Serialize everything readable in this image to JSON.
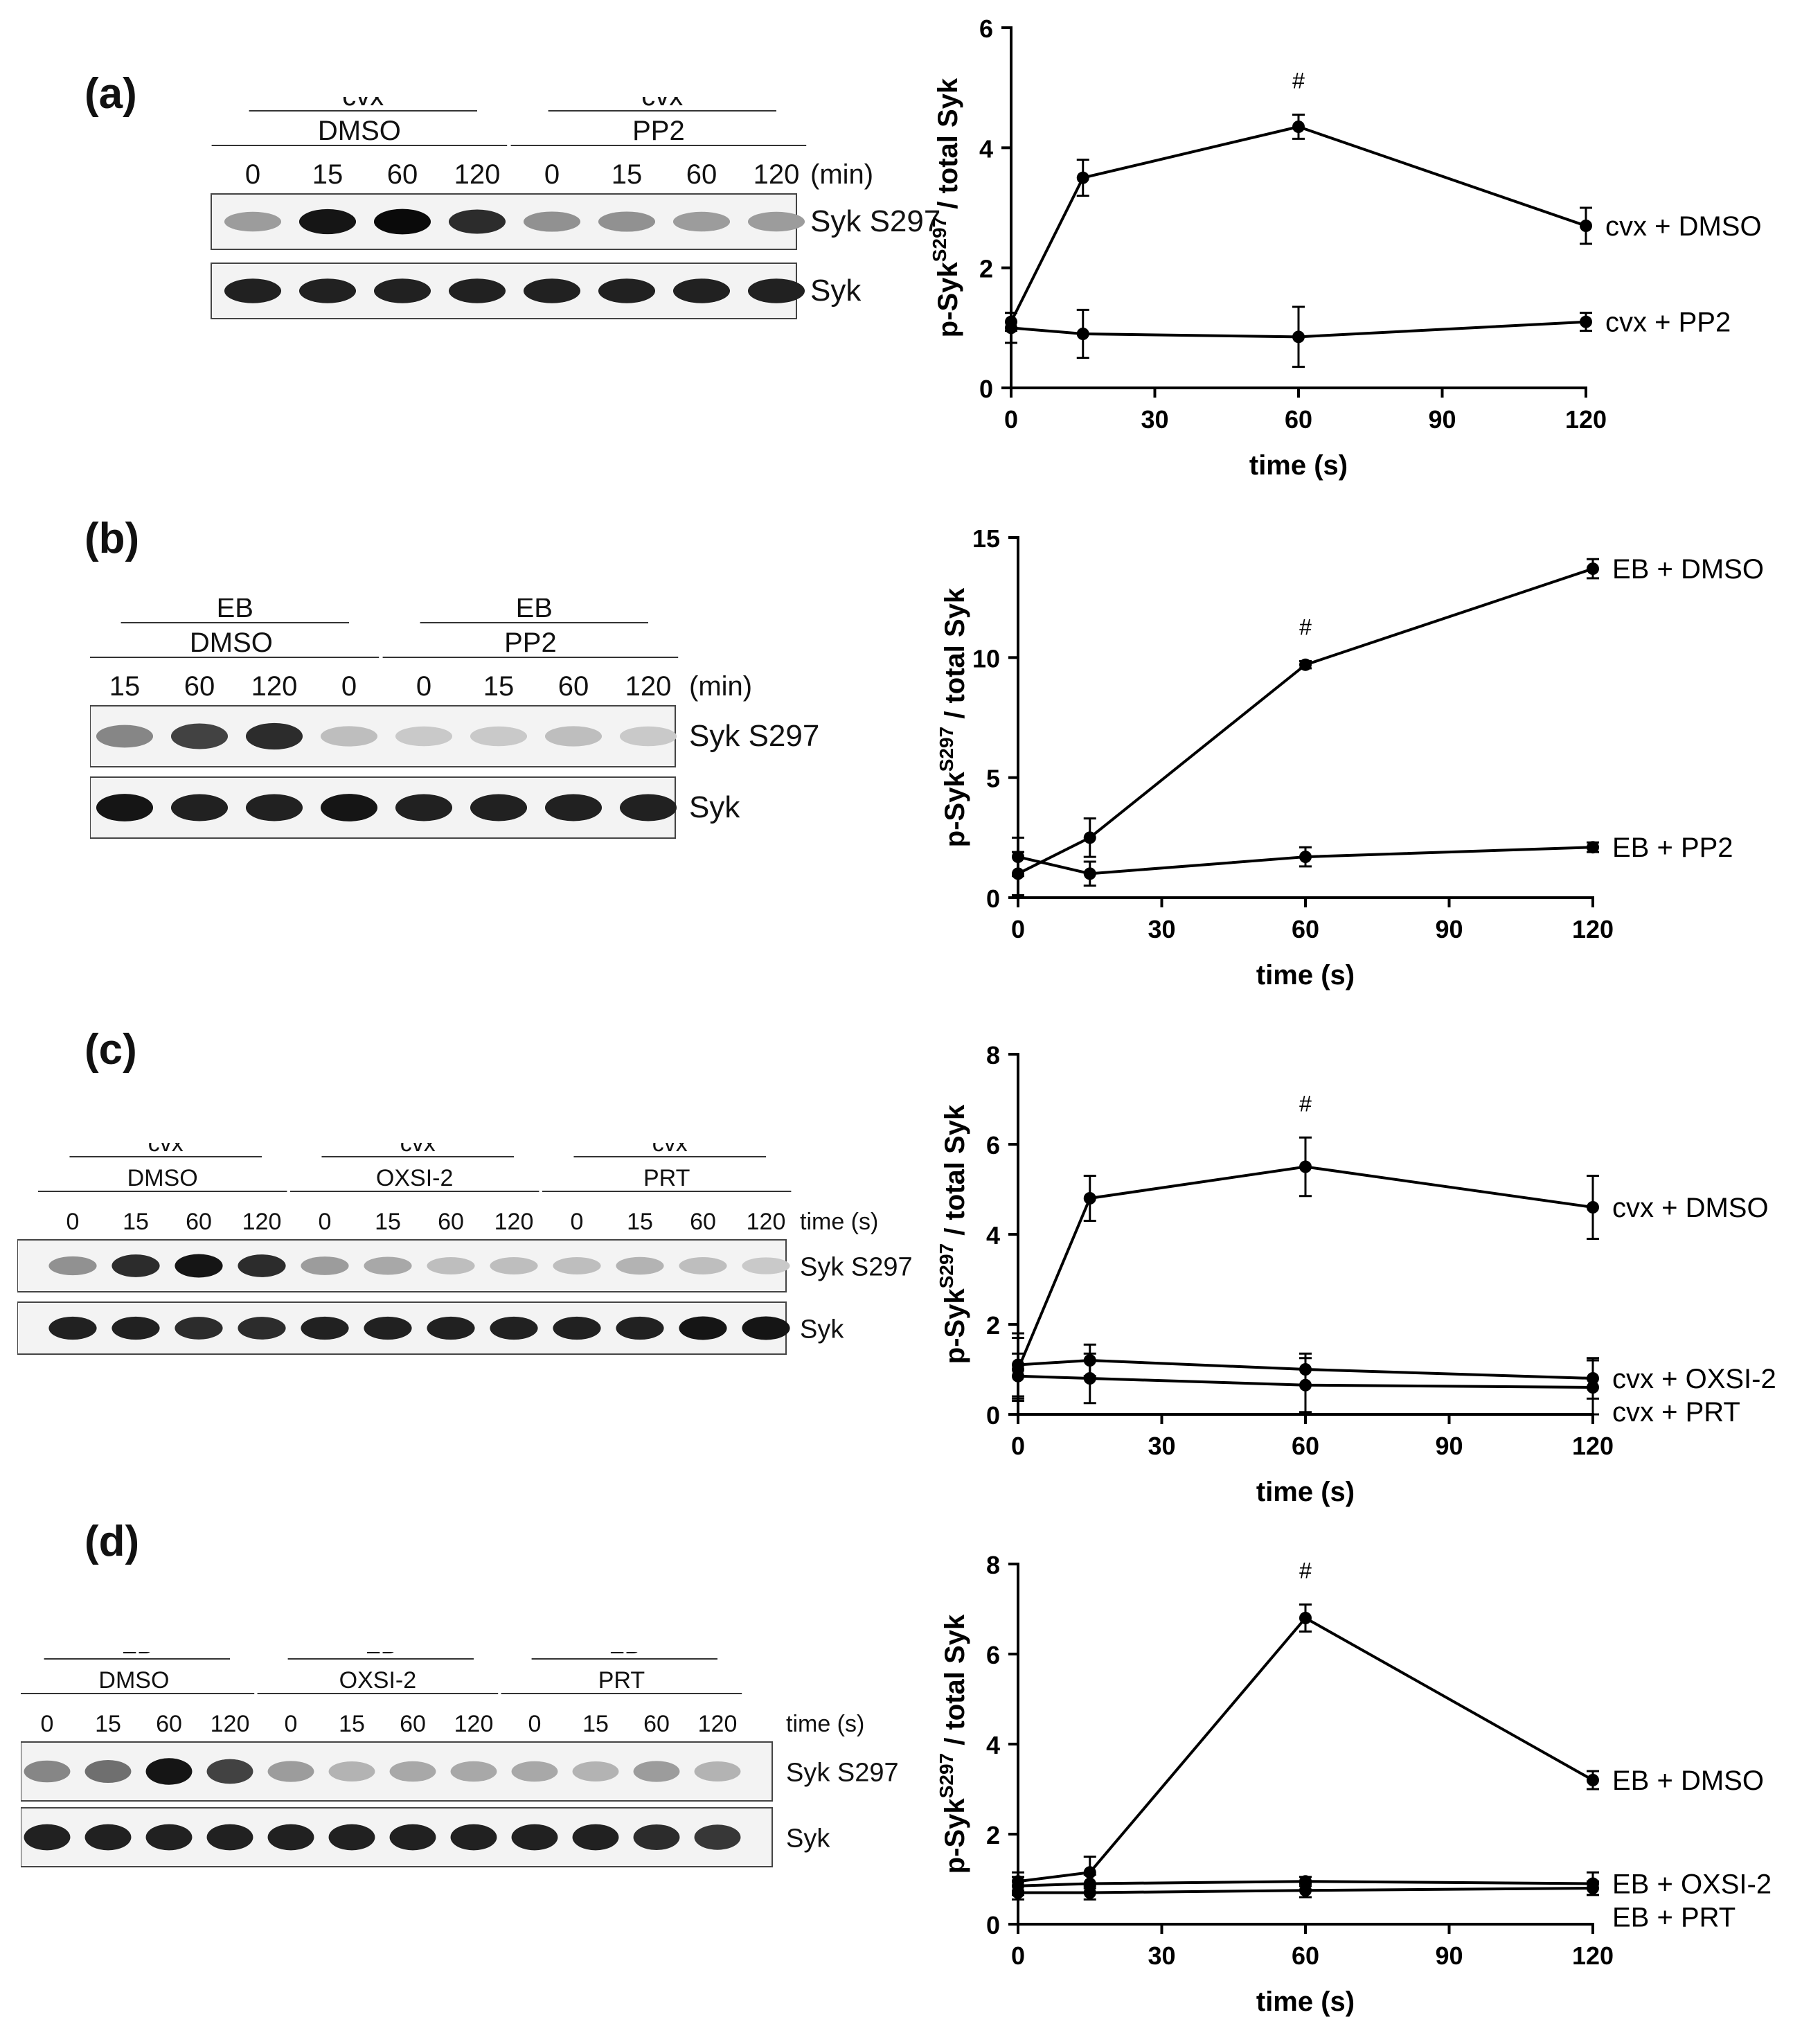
{
  "panels": [
    {
      "label": "(a)",
      "blot": {
        "groups": [
          {
            "treatment": "DMSO",
            "stimulus": "cvx"
          },
          {
            "treatment": "PP2",
            "stimulus": "cvx"
          }
        ],
        "times": [
          "0",
          "15",
          "60",
          "120",
          "0",
          "15",
          "60",
          "120"
        ],
        "time_unit": "(min)",
        "rows": [
          "Syk S297",
          "Syk"
        ],
        "phospho_intensity": [
          0.35,
          0.95,
          1.0,
          0.85,
          0.4,
          0.4,
          0.35,
          0.35
        ],
        "total_intensity": [
          0.9,
          0.9,
          0.9,
          0.9,
          0.9,
          0.9,
          0.9,
          0.9
        ]
      }
    },
    {
      "label": "(b)",
      "blot": {
        "groups": [
          {
            "treatment": "DMSO",
            "stimulus": "EB"
          },
          {
            "treatment": "PP2",
            "stimulus": "EB"
          }
        ],
        "times": [
          "15",
          "60",
          "120",
          "0",
          "0",
          "15",
          "60",
          "120"
        ],
        "time_unit": "(min)",
        "rows": [
          "Syk S297",
          "Syk"
        ],
        "phospho_intensity": [
          0.45,
          0.75,
          0.85,
          0.2,
          0.15,
          0.15,
          0.2,
          0.15
        ],
        "total_intensity": [
          0.95,
          0.9,
          0.9,
          0.95,
          0.9,
          0.9,
          0.9,
          0.9
        ]
      }
    },
    {
      "label": "(c)",
      "blot": {
        "groups": [
          {
            "treatment": "DMSO",
            "stimulus": "cvx"
          },
          {
            "treatment": "OXSI-2",
            "stimulus": "cvx"
          },
          {
            "treatment": "PRT",
            "stimulus": "cvx"
          }
        ],
        "times": [
          "0",
          "15",
          "60",
          "120",
          "0",
          "15",
          "60",
          "120",
          "0",
          "15",
          "60",
          "120"
        ],
        "time_unit": "time (s)",
        "rows": [
          "Syk S297",
          "Syk"
        ],
        "phospho_intensity": [
          0.4,
          0.85,
          0.95,
          0.85,
          0.35,
          0.3,
          0.2,
          0.2,
          0.2,
          0.25,
          0.2,
          0.15
        ],
        "total_intensity": [
          0.9,
          0.9,
          0.85,
          0.85,
          0.9,
          0.9,
          0.9,
          0.9,
          0.9,
          0.9,
          0.95,
          0.95
        ]
      }
    },
    {
      "label": "(d)",
      "blot": {
        "groups": [
          {
            "treatment": "DMSO",
            "stimulus": "EB"
          },
          {
            "treatment": "OXSI-2",
            "stimulus": "EB"
          },
          {
            "treatment": "PRT",
            "stimulus": "EB"
          }
        ],
        "times": [
          "0",
          "15",
          "60",
          "120",
          "0",
          "15",
          "60",
          "120",
          "0",
          "15",
          "60",
          "120"
        ],
        "time_unit": "time (s)",
        "rows": [
          "Syk S297",
          "Syk"
        ],
        "phospho_intensity": [
          0.45,
          0.55,
          0.95,
          0.75,
          0.35,
          0.25,
          0.3,
          0.3,
          0.3,
          0.25,
          0.35,
          0.25
        ],
        "total_intensity": [
          0.9,
          0.9,
          0.9,
          0.9,
          0.9,
          0.9,
          0.9,
          0.9,
          0.9,
          0.9,
          0.85,
          0.8
        ]
      }
    }
  ],
  "chart_data": [
    {
      "type": "line",
      "panel": "(a)",
      "xlabel": "time (s)",
      "ylabel_main": "p-Syk",
      "ylabel_sup": "S297",
      "ylabel_rest": " / total Syk",
      "xlim": [
        0,
        120
      ],
      "ylim": [
        0,
        6
      ],
      "xticks": [
        0,
        30,
        60,
        90,
        120
      ],
      "yticks": [
        0,
        2,
        4,
        6
      ],
      "x": [
        0,
        15,
        60,
        120
      ],
      "series": [
        {
          "name": "cvx + DMSO",
          "values": [
            1.1,
            3.5,
            4.35,
            2.7
          ],
          "errors": [
            0.15,
            0.3,
            0.2,
            0.3
          ]
        },
        {
          "name": "cvx + PP2",
          "values": [
            1.0,
            0.9,
            0.85,
            1.1
          ],
          "errors": [
            0.25,
            0.4,
            0.5,
            0.15
          ]
        }
      ],
      "annotations": [
        {
          "x": 60,
          "text": "#"
        }
      ]
    },
    {
      "type": "line",
      "panel": "(b)",
      "xlabel": "time (s)",
      "ylabel_main": "p-Syk",
      "ylabel_sup": "S297",
      "ylabel_rest": " / total Syk",
      "xlim": [
        0,
        120
      ],
      "ylim": [
        0,
        15
      ],
      "xticks": [
        0,
        30,
        60,
        90,
        120
      ],
      "yticks": [
        0,
        5,
        10,
        15
      ],
      "x": [
        0,
        15,
        60,
        120
      ],
      "series": [
        {
          "name": "EB + DMSO",
          "values": [
            1.0,
            2.5,
            9.7,
            13.7
          ],
          "errors": [
            0.9,
            0.8,
            0.15,
            0.4
          ]
        },
        {
          "name": "EB + PP2",
          "values": [
            1.7,
            1.0,
            1.7,
            2.1
          ],
          "errors": [
            0.8,
            0.5,
            0.4,
            0.2
          ]
        }
      ],
      "annotations": [
        {
          "x": 60,
          "text": "#"
        }
      ]
    },
    {
      "type": "line",
      "panel": "(c)",
      "xlabel": "time (s)",
      "ylabel_main": "p-Syk",
      "ylabel_sup": "S297",
      "ylabel_rest": " / total Syk",
      "xlim": [
        0,
        120
      ],
      "ylim": [
        0,
        8
      ],
      "xticks": [
        0,
        30,
        60,
        90,
        120
      ],
      "yticks": [
        0,
        2,
        4,
        6,
        8
      ],
      "x": [
        0,
        15,
        60,
        120
      ],
      "series": [
        {
          "name": "cvx + DMSO",
          "values": [
            1.0,
            4.8,
            5.5,
            4.6
          ],
          "errors": [
            0.7,
            0.5,
            0.65,
            0.7
          ]
        },
        {
          "name": "cvx + OXSI-2",
          "values": [
            1.1,
            1.2,
            1.0,
            0.8
          ],
          "errors": [
            0.7,
            0.35,
            0.35,
            0.45
          ]
        },
        {
          "name": "cvx + PRT",
          "values": [
            0.85,
            0.8,
            0.65,
            0.6
          ],
          "errors": [
            0.5,
            0.55,
            0.6,
            0.6
          ]
        }
      ],
      "annotations": [
        {
          "x": 60,
          "text": "#"
        }
      ]
    },
    {
      "type": "line",
      "panel": "(d)",
      "xlabel": "time (s)",
      "ylabel_main": "p-Syk",
      "ylabel_sup": "S297",
      "ylabel_rest": " / total Syk",
      "xlim": [
        0,
        120
      ],
      "ylim": [
        0,
        8
      ],
      "xticks": [
        0,
        30,
        60,
        90,
        120
      ],
      "yticks": [
        0,
        2,
        4,
        6,
        8
      ],
      "x": [
        0,
        15,
        60,
        120
      ],
      "series": [
        {
          "name": "EB + DMSO",
          "values": [
            0.95,
            1.15,
            6.8,
            3.2
          ],
          "errors": [
            0.2,
            0.35,
            0.3,
            0.2
          ]
        },
        {
          "name": "EB + OXSI-2",
          "values": [
            0.85,
            0.9,
            0.95,
            0.9
          ],
          "errors": [
            0.2,
            0.2,
            0.1,
            0.25
          ]
        },
        {
          "name": "EB + PRT",
          "values": [
            0.7,
            0.7,
            0.75,
            0.8
          ],
          "errors": [
            0.15,
            0.15,
            0.15,
            0.15
          ]
        }
      ],
      "annotations": [
        {
          "x": 60,
          "text": "#"
        }
      ]
    }
  ]
}
